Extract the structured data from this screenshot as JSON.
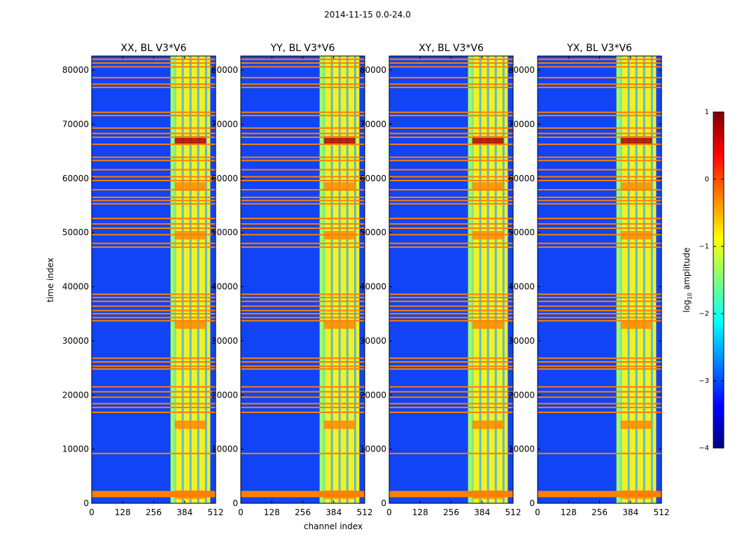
{
  "figure": {
    "suptitle": "2014-11-15 0.0-24.0",
    "xlabel": "channel index",
    "ylabel": "time index"
  },
  "chart_data": [
    {
      "type": "heatmap",
      "title": "XX, BL V3*V6",
      "x_ticks": [
        0,
        128,
        256,
        384,
        512
      ],
      "y_ticks": [
        0,
        10000,
        20000,
        30000,
        40000,
        50000,
        60000,
        70000,
        80000
      ],
      "xlim": [
        0,
        512
      ],
      "ylim": [
        0,
        82600
      ],
      "rfi_channel_range": [
        326,
        490
      ],
      "bright_events_time_index": [
        67000,
        58500,
        49500,
        33000,
        14500,
        1600
      ]
    },
    {
      "type": "heatmap",
      "title": "YY, BL V3*V6",
      "x_ticks": [
        0,
        128,
        256,
        384,
        512
      ],
      "y_ticks": [
        0,
        10000,
        20000,
        30000,
        40000,
        50000,
        60000,
        70000,
        80000
      ],
      "xlim": [
        0,
        512
      ],
      "ylim": [
        0,
        82600
      ],
      "rfi_channel_range": [
        326,
        490
      ],
      "bright_events_time_index": [
        67000,
        58500,
        49500,
        33000,
        14500,
        1600
      ]
    },
    {
      "type": "heatmap",
      "title": "XY, BL V3*V6",
      "x_ticks": [
        0,
        128,
        256,
        384,
        512
      ],
      "y_ticks": [
        0,
        10000,
        20000,
        30000,
        40000,
        50000,
        60000,
        70000,
        80000
      ],
      "xlim": [
        0,
        512
      ],
      "ylim": [
        0,
        82600
      ],
      "rfi_channel_range": [
        326,
        490
      ],
      "bright_events_time_index": [
        67000,
        58500,
        49500,
        33000,
        14500,
        1600
      ]
    },
    {
      "type": "heatmap",
      "title": "YX, BL V3*V6",
      "x_ticks": [
        0,
        128,
        256,
        384,
        512
      ],
      "y_ticks": [
        0,
        10000,
        20000,
        30000,
        40000,
        50000,
        60000,
        70000,
        80000
      ],
      "xlim": [
        0,
        512
      ],
      "ylim": [
        0,
        82600
      ],
      "rfi_channel_range": [
        326,
        490
      ],
      "bright_events_time_index": [
        67000,
        58500,
        49500,
        33000,
        14500,
        1600
      ]
    }
  ],
  "colorbar": {
    "label": "log10 amplitude",
    "vmin": -4,
    "vmax": 1,
    "ticks": [
      1,
      0,
      -1,
      -2,
      -3,
      -4
    ],
    "tick_labels": [
      "1",
      "0",
      "−1",
      "−2",
      "−3",
      "−4"
    ],
    "colormap": "jet",
    "colors": [
      "#00007f",
      "#0000ff",
      "#007fff",
      "#00ffff",
      "#7fff7f",
      "#ffff00",
      "#ff7f00",
      "#ff0000",
      "#7f0000"
    ]
  },
  "flagged_rows_time_index": [
    1500,
    1900,
    9200,
    16800,
    17700,
    18400,
    19600,
    20600,
    21500,
    24800,
    25300,
    26100,
    26800,
    33700,
    34300,
    35000,
    35600,
    36400,
    37300,
    38000,
    38600,
    47300,
    48000,
    49600,
    50800,
    51600,
    52600,
    55300,
    55900,
    56500,
    57900,
    59600,
    60300,
    61600,
    63300,
    63900,
    66300,
    67600,
    68300,
    69300,
    71600,
    72200,
    76800,
    77400,
    78600,
    80600,
    81300,
    82000
  ],
  "flag_color": "#ff7f00",
  "background_color": "#0a2ef0"
}
